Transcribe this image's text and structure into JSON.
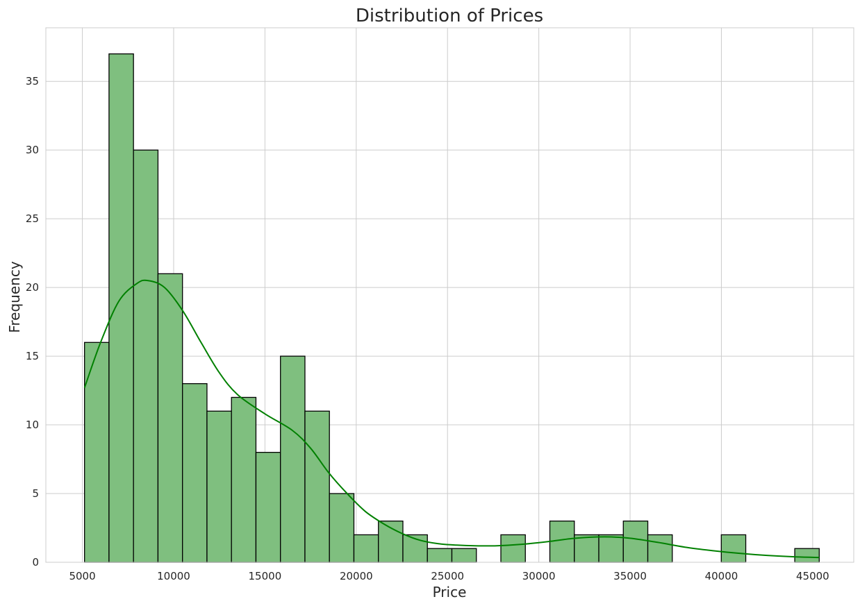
{
  "chart_data": {
    "type": "bar",
    "title": "Distribution of Prices",
    "xlabel": "Price",
    "ylabel": "Frequency",
    "xlim": [
      3000,
      47250
    ],
    "ylim": [
      0,
      38.9
    ],
    "x_ticks": [
      5000,
      10000,
      15000,
      20000,
      25000,
      30000,
      35000,
      40000,
      45000
    ],
    "y_ticks": [
      0,
      5,
      10,
      15,
      20,
      25,
      30,
      35
    ],
    "grid": true,
    "bins": {
      "start": 5118,
      "width": 1341.4,
      "counts": [
        16,
        37,
        30,
        21,
        13,
        11,
        12,
        8,
        15,
        11,
        5,
        2,
        3,
        2,
        1,
        1,
        0,
        2,
        0,
        3,
        2,
        2,
        3,
        2,
        0,
        0,
        2,
        0,
        0,
        1
      ]
    },
    "kde_curve": {
      "x": [
        5118,
        6000,
        7000,
        8000,
        8600,
        9500,
        10500,
        11500,
        12500,
        13500,
        15000,
        16500,
        17500,
        18500,
        19500,
        20500,
        21500,
        22500,
        23500,
        24500,
        25500,
        26500,
        27700,
        29000,
        30500,
        32000,
        33600,
        35000,
        36500,
        38000,
        39500,
        41000,
        42500,
        44000,
        45360
      ],
      "y": [
        12.7,
        16.0,
        19.0,
        20.3,
        20.5,
        20.0,
        18.3,
        16.0,
        13.8,
        12.2,
        10.8,
        9.6,
        8.3,
        6.5,
        5.0,
        3.7,
        2.8,
        2.1,
        1.6,
        1.35,
        1.25,
        1.2,
        1.2,
        1.3,
        1.5,
        1.75,
        1.85,
        1.75,
        1.45,
        1.1,
        0.85,
        0.65,
        0.5,
        0.4,
        0.35
      ]
    },
    "colors": {
      "bar_fill": "#7fbf7f",
      "bar_edge": "#000000",
      "kde_line": "#008000",
      "grid": "#cccccc",
      "axes_edge": "#cccccc",
      "text": "#262626"
    }
  }
}
